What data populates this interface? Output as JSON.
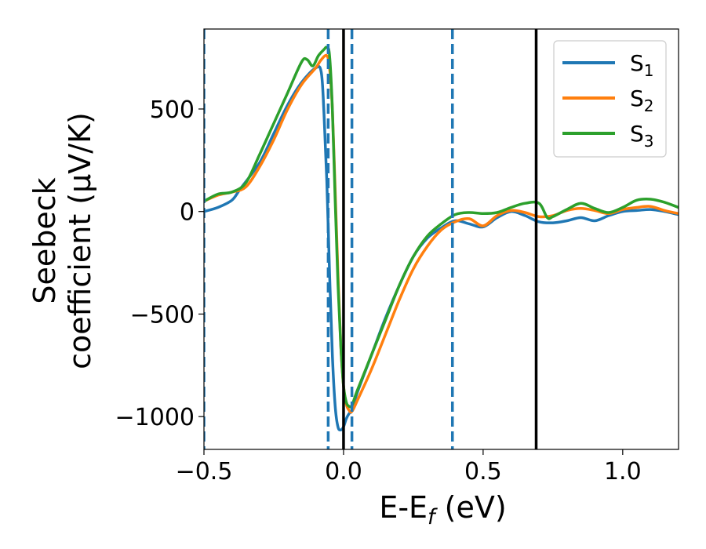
{
  "chart_data": {
    "type": "line",
    "xlabel": "E-E_f (eV)",
    "ylabel": "Seebeck coefficient (μV/K)",
    "ylabel_lines": [
      "Seebeck",
      "coefficient  (μV/K)"
    ],
    "xlim": [
      -0.5,
      1.2
    ],
    "ylim": [
      -1160,
      890
    ],
    "xticks": [
      -0.5,
      0.0,
      0.5,
      1.0
    ],
    "xtick_labels": [
      "−0.5",
      "0.0",
      "0.5",
      "1.0"
    ],
    "yticks": [
      500,
      0,
      -500,
      -1000
    ],
    "ytick_labels": [
      "500",
      "0",
      "−500",
      "−1000"
    ],
    "grid": false,
    "legend_position": "top-right",
    "series": [
      {
        "name": "S1",
        "color": "#1f77b4",
        "points": [
          [
            -0.5,
            0
          ],
          [
            -0.45,
            20
          ],
          [
            -0.4,
            55
          ],
          [
            -0.37,
            110
          ],
          [
            -0.3,
            240
          ],
          [
            -0.25,
            380
          ],
          [
            -0.2,
            520
          ],
          [
            -0.15,
            630
          ],
          [
            -0.1,
            700
          ],
          [
            -0.08,
            680
          ],
          [
            -0.07,
            480
          ],
          [
            -0.06,
            150
          ],
          [
            -0.05,
            -300
          ],
          [
            -0.04,
            -700
          ],
          [
            -0.03,
            -950
          ],
          [
            -0.02,
            -1050
          ],
          [
            -0.01,
            -1065
          ],
          [
            0.0,
            -1050
          ],
          [
            0.01,
            -1010
          ],
          [
            0.02,
            -985
          ],
          [
            0.03,
            -970
          ],
          [
            0.05,
            -880
          ],
          [
            0.1,
            -700
          ],
          [
            0.15,
            -520
          ],
          [
            0.2,
            -360
          ],
          [
            0.25,
            -220
          ],
          [
            0.3,
            -130
          ],
          [
            0.35,
            -80
          ],
          [
            0.4,
            -45
          ],
          [
            0.45,
            -60
          ],
          [
            0.5,
            -75
          ],
          [
            0.55,
            -30
          ],
          [
            0.6,
            0
          ],
          [
            0.65,
            -20
          ],
          [
            0.7,
            -50
          ],
          [
            0.75,
            -55
          ],
          [
            0.8,
            -45
          ],
          [
            0.85,
            -30
          ],
          [
            0.9,
            -45
          ],
          [
            0.95,
            -20
          ],
          [
            1.0,
            0
          ],
          [
            1.05,
            5
          ],
          [
            1.1,
            10
          ],
          [
            1.15,
            0
          ],
          [
            1.2,
            -15
          ]
        ]
      },
      {
        "name": "S2",
        "color": "#ff7f0e",
        "points": [
          [
            -0.5,
            50
          ],
          [
            -0.45,
            80
          ],
          [
            -0.4,
            95
          ],
          [
            -0.35,
            120
          ],
          [
            -0.3,
            220
          ],
          [
            -0.25,
            350
          ],
          [
            -0.2,
            500
          ],
          [
            -0.15,
            620
          ],
          [
            -0.1,
            700
          ],
          [
            -0.08,
            740
          ],
          [
            -0.06,
            760
          ],
          [
            -0.05,
            700
          ],
          [
            -0.04,
            500
          ],
          [
            -0.03,
            100
          ],
          [
            -0.02,
            -300
          ],
          [
            -0.01,
            -650
          ],
          [
            0.0,
            -850
          ],
          [
            0.01,
            -940
          ],
          [
            0.02,
            -970
          ],
          [
            0.03,
            -975
          ],
          [
            0.05,
            -920
          ],
          [
            0.1,
            -770
          ],
          [
            0.15,
            -600
          ],
          [
            0.2,
            -430
          ],
          [
            0.25,
            -280
          ],
          [
            0.3,
            -170
          ],
          [
            0.35,
            -90
          ],
          [
            0.4,
            -50
          ],
          [
            0.45,
            -35
          ],
          [
            0.5,
            -70
          ],
          [
            0.55,
            -20
          ],
          [
            0.6,
            5
          ],
          [
            0.65,
            -5
          ],
          [
            0.7,
            -25
          ],
          [
            0.75,
            -20
          ],
          [
            0.8,
            5
          ],
          [
            0.85,
            15
          ],
          [
            0.9,
            5
          ],
          [
            0.95,
            -10
          ],
          [
            1.0,
            10
          ],
          [
            1.05,
            20
          ],
          [
            1.1,
            25
          ],
          [
            1.15,
            5
          ],
          [
            1.2,
            -10
          ]
        ]
      },
      {
        "name": "S3",
        "color": "#2ca02c",
        "points": [
          [
            -0.5,
            50
          ],
          [
            -0.45,
            85
          ],
          [
            -0.4,
            95
          ],
          [
            -0.35,
            140
          ],
          [
            -0.3,
            280
          ],
          [
            -0.25,
            430
          ],
          [
            -0.2,
            580
          ],
          [
            -0.15,
            730
          ],
          [
            -0.13,
            740
          ],
          [
            -0.11,
            710
          ],
          [
            -0.09,
            760
          ],
          [
            -0.07,
            790
          ],
          [
            -0.06,
            800
          ],
          [
            -0.05,
            760
          ],
          [
            -0.04,
            500
          ],
          [
            -0.03,
            50
          ],
          [
            -0.02,
            -350
          ],
          [
            -0.01,
            -650
          ],
          [
            0.0,
            -850
          ],
          [
            0.01,
            -930
          ],
          [
            0.02,
            -950
          ],
          [
            0.03,
            -945
          ],
          [
            0.05,
            -870
          ],
          [
            0.1,
            -700
          ],
          [
            0.15,
            -530
          ],
          [
            0.2,
            -360
          ],
          [
            0.25,
            -220
          ],
          [
            0.3,
            -120
          ],
          [
            0.35,
            -60
          ],
          [
            0.4,
            -15
          ],
          [
            0.45,
            -5
          ],
          [
            0.5,
            -10
          ],
          [
            0.55,
            -5
          ],
          [
            0.6,
            20
          ],
          [
            0.65,
            40
          ],
          [
            0.7,
            40
          ],
          [
            0.73,
            -30
          ],
          [
            0.75,
            -25
          ],
          [
            0.8,
            10
          ],
          [
            0.85,
            40
          ],
          [
            0.9,
            15
          ],
          [
            0.95,
            -5
          ],
          [
            1.0,
            20
          ],
          [
            1.05,
            55
          ],
          [
            1.1,
            60
          ],
          [
            1.15,
            45
          ],
          [
            1.2,
            20
          ]
        ]
      }
    ],
    "vlines": [
      {
        "x": -0.5,
        "color": "#1f77b4",
        "style": "dashed"
      },
      {
        "x": -0.055,
        "color": "#1f77b4",
        "style": "dashed"
      },
      {
        "x": 0.03,
        "color": "#1f77b4",
        "style": "dashed"
      },
      {
        "x": 0.39,
        "color": "#1f77b4",
        "style": "dashed"
      },
      {
        "x": 0.0,
        "color": "#000000",
        "style": "solid"
      },
      {
        "x": 0.69,
        "color": "#000000",
        "style": "solid"
      }
    ]
  }
}
